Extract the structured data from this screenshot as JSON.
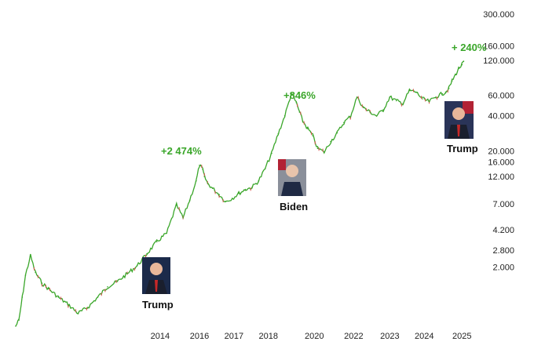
{
  "chart_data": {
    "type": "line",
    "scale": "log",
    "ylim": [
      600,
      300000
    ],
    "y_ticks": [
      "300.000",
      "160.000",
      "120.000",
      "60.000",
      "40.000",
      "20.000",
      "16.000",
      "12.000",
      "7.000",
      "4.200",
      "2.800",
      "2.000"
    ],
    "y_tick_values": [
      300000,
      160000,
      120000,
      60000,
      40000,
      20000,
      16000,
      12000,
      7000,
      4200,
      2800,
      2000
    ],
    "x_ticks": [
      "2014",
      "2016",
      "2017",
      "2018",
      "2020",
      "2022",
      "2023",
      "2024",
      "2025"
    ],
    "x_tick_values": [
      2014.4,
      2015.6,
      2016.65,
      2017.7,
      2019.1,
      2020.3,
      2021.4,
      2022.45,
      2023.6
    ],
    "xlim": [
      2010.0,
      2024.0
    ],
    "series": [
      {
        "x": [
          2010.0,
          2010.1,
          2010.2,
          2010.3,
          2010.45,
          2010.6,
          2010.8,
          2011.0,
          2011.3,
          2011.6,
          2011.9,
          2012.2,
          2012.5,
          2012.8,
          2013.1,
          2013.4,
          2013.7,
          2014.0,
          2014.3,
          2014.6,
          2014.9,
          2015.1,
          2015.3,
          2015.5,
          2015.6,
          2015.7,
          2015.75,
          2015.85,
          2016.0,
          2016.2,
          2016.4,
          2016.6,
          2016.8,
          2017.0,
          2017.2,
          2017.4,
          2017.6,
          2017.8,
          2018.0,
          2018.2,
          2018.4,
          2018.55,
          2018.65,
          2018.75,
          2018.9,
          2019.05,
          2019.2,
          2019.4,
          2019.6,
          2019.8,
          2020.0,
          2020.2,
          2020.4,
          2020.6,
          2020.8,
          2021.0,
          2021.2,
          2021.4,
          2021.6,
          2021.8,
          2022.0,
          2022.2,
          2022.4,
          2022.6,
          2022.8,
          2023.0,
          2023.1,
          2023.2,
          2023.3,
          2023.4,
          2023.5,
          2023.6,
          2023.65
        ],
        "y": [
          620,
          700,
          1100,
          1700,
          2500,
          1800,
          1450,
          1300,
          1100,
          950,
          800,
          900,
          1100,
          1350,
          1500,
          1750,
          2050,
          2600,
          3300,
          3900,
          6800,
          5300,
          7500,
          11000,
          15000,
          13800,
          12000,
          10500,
          9500,
          8400,
          7300,
          7800,
          8600,
          9300,
          9700,
          11000,
          14000,
          19000,
          28000,
          40000,
          62000,
          52000,
          43000,
          36000,
          31000,
          27000,
          21000,
          19500,
          24000,
          28500,
          35000,
          39500,
          58000,
          47000,
          43000,
          40000,
          45000,
          58000,
          54000,
          51000,
          66000,
          64000,
          56000,
          53000,
          58000,
          62000,
          64000,
          69000,
          80000,
          90000,
          102000,
          110000,
          118000
        ]
      }
    ],
    "annotations": [
      "+2 474%",
      "+846%",
      "+ 240%"
    ],
    "presidents": [
      "Trump",
      "Biden",
      "Trump"
    ],
    "colors": {
      "line": "#3aa62a",
      "down": "#d9534f",
      "annotation": "#3aa62a"
    }
  }
}
